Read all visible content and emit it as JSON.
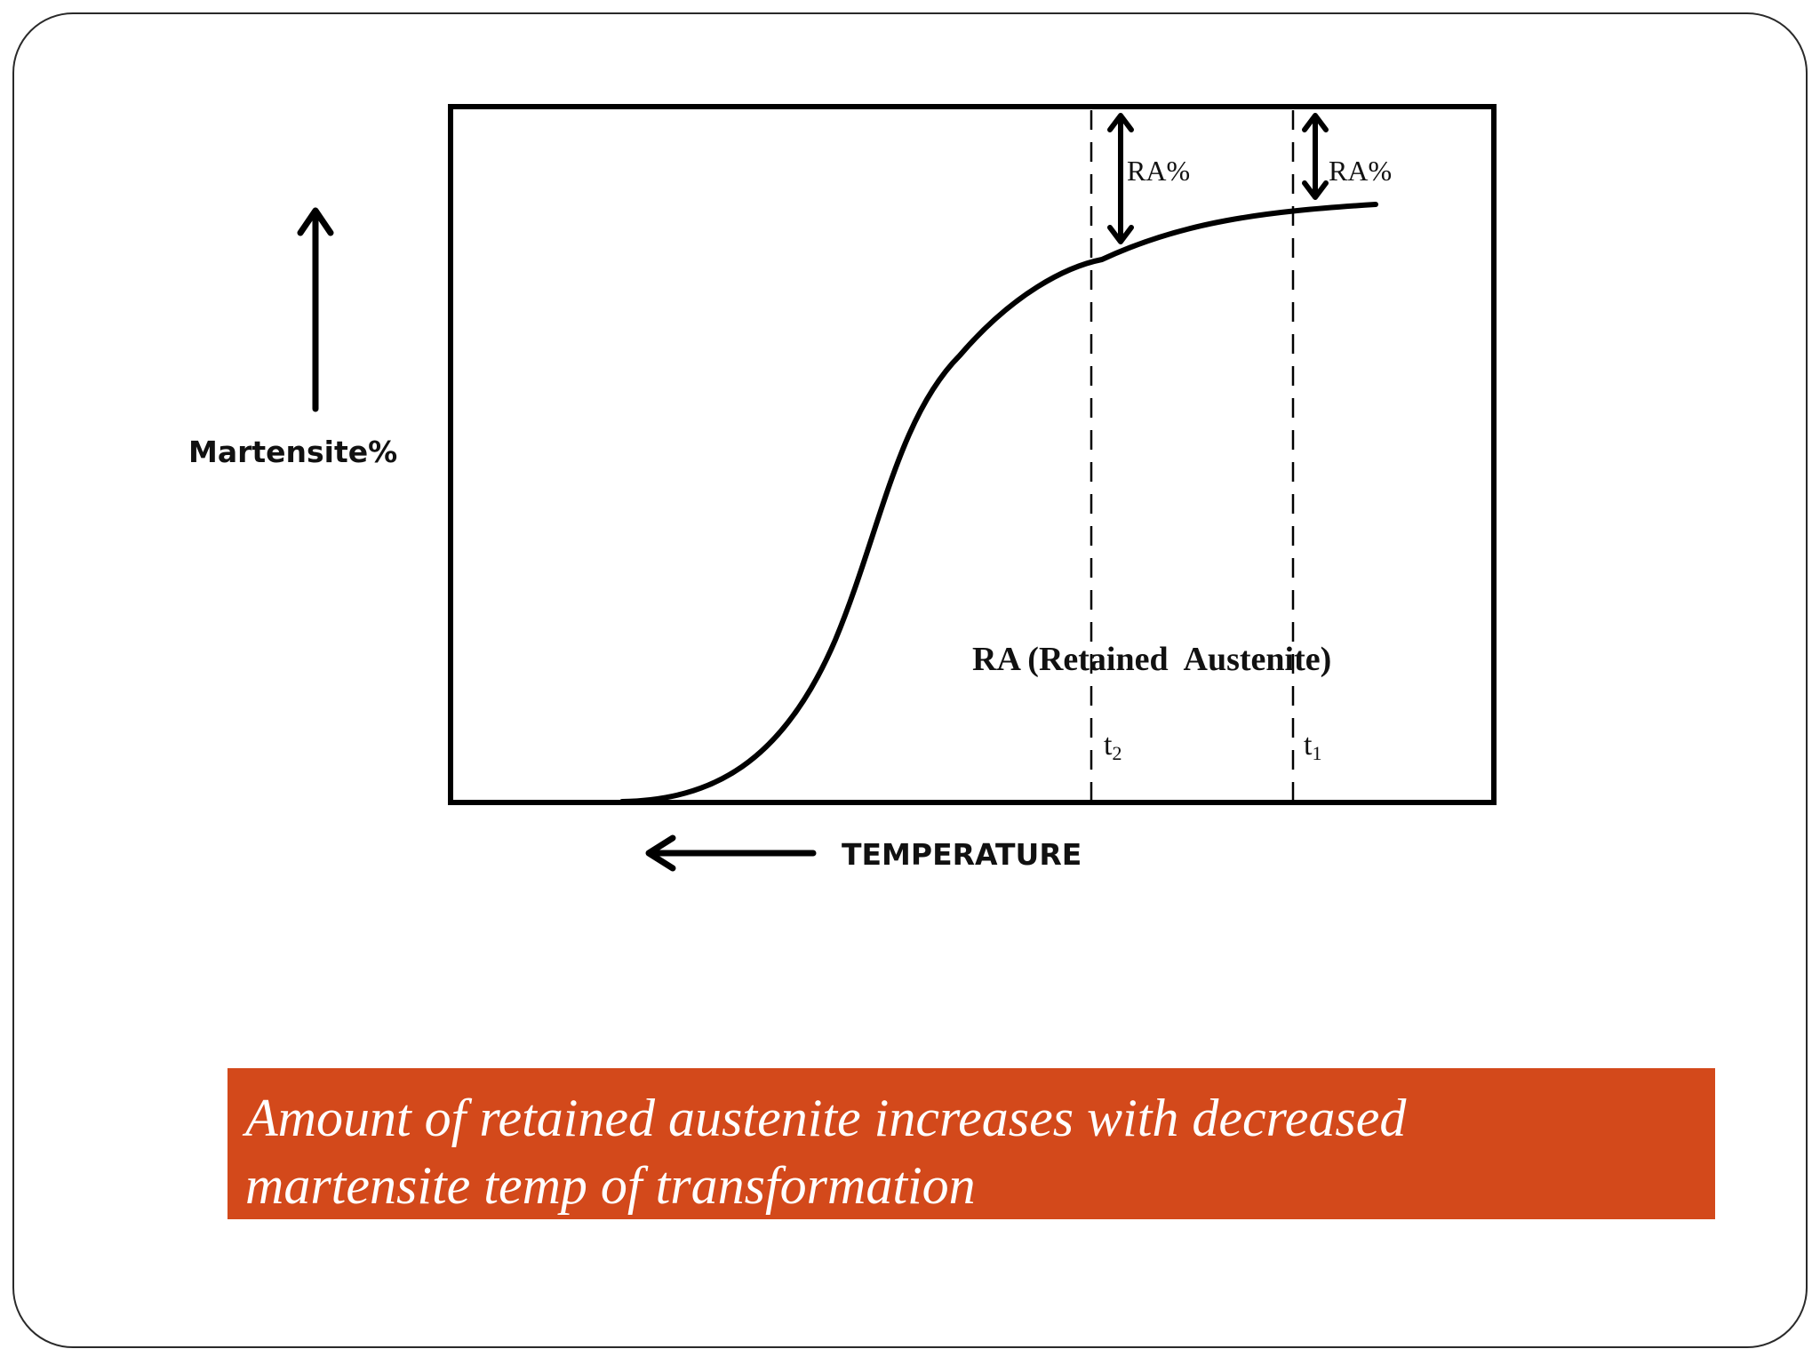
{
  "diagram": {
    "y_axis_label": "Martensite%",
    "x_axis_label": "TEMPERATURE",
    "region_label": "RA (Retained  Austenite)",
    "markers": [
      {
        "label": "t",
        "subscript": "2",
        "arrow_label": "RA%"
      },
      {
        "label": "t",
        "subscript": "1",
        "arrow_label": "RA%"
      }
    ]
  },
  "caption": {
    "line1": "Amount of retained austenite increases with decreased",
    "line2": "martensite temp of transformation",
    "background_color": "#d3491b",
    "text_color": "#ffffff"
  }
}
